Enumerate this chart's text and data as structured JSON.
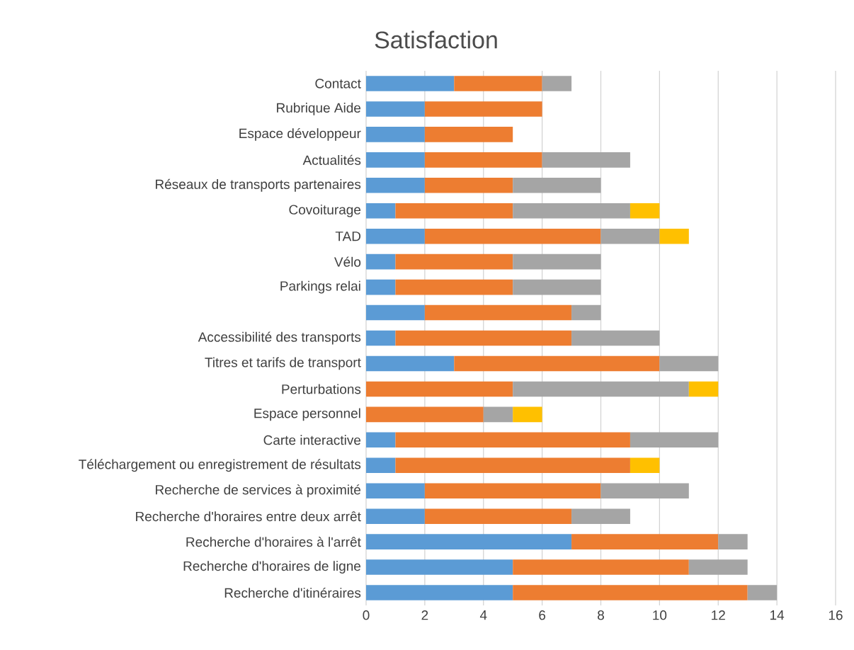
{
  "chart_data": {
    "type": "bar",
    "orientation": "horizontal",
    "stacked": true,
    "title": "Satisfaction",
    "categories": [
      "Contact",
      "Rubrique Aide",
      "Espace développeur",
      "Actualités",
      "Réseaux de transports partenaires",
      "Covoiturage",
      "TAD",
      "Vélo",
      "Parkings relai",
      null,
      "Accessibilité des transports",
      "Titres et tarifs de transport",
      "Perturbations",
      "Espace personnel",
      "Carte interactive",
      "Téléchargement ou enregistrement de résultats",
      "Recherche de services à proximité",
      "Recherche d'horaires entre deux arrêt",
      "Recherche d'horaires à l'arrêt",
      "Recherche d'horaires de ligne",
      "Recherche d'itinéraires"
    ],
    "series": [
      {
        "color": "#5b9bd5",
        "values": [
          3,
          2,
          2,
          2,
          2,
          1,
          2,
          1,
          1,
          2,
          1,
          3,
          null,
          null,
          1,
          1,
          2,
          2,
          7,
          5,
          5
        ]
      },
      {
        "color": "#ed7d31",
        "values": [
          3,
          4,
          3,
          4,
          3,
          4,
          6,
          4,
          4,
          5,
          6,
          7,
          5,
          4,
          8,
          8,
          6,
          5,
          5,
          6,
          8
        ]
      },
      {
        "color": "#a5a5a5",
        "values": [
          1,
          null,
          null,
          3,
          3,
          4,
          2,
          3,
          3,
          1,
          3,
          2,
          6,
          1,
          3,
          null,
          3,
          2,
          1,
          2,
          1
        ]
      },
      {
        "color": "#ffc000",
        "values": [
          null,
          null,
          null,
          null,
          null,
          1,
          1,
          null,
          null,
          null,
          null,
          null,
          1,
          1,
          null,
          1,
          null,
          null,
          null,
          null,
          null
        ]
      }
    ],
    "xlim": [
      0,
      16
    ],
    "xticks": [
      0,
      2,
      4,
      6,
      8,
      10,
      12,
      14,
      16
    ],
    "grid": "x"
  }
}
